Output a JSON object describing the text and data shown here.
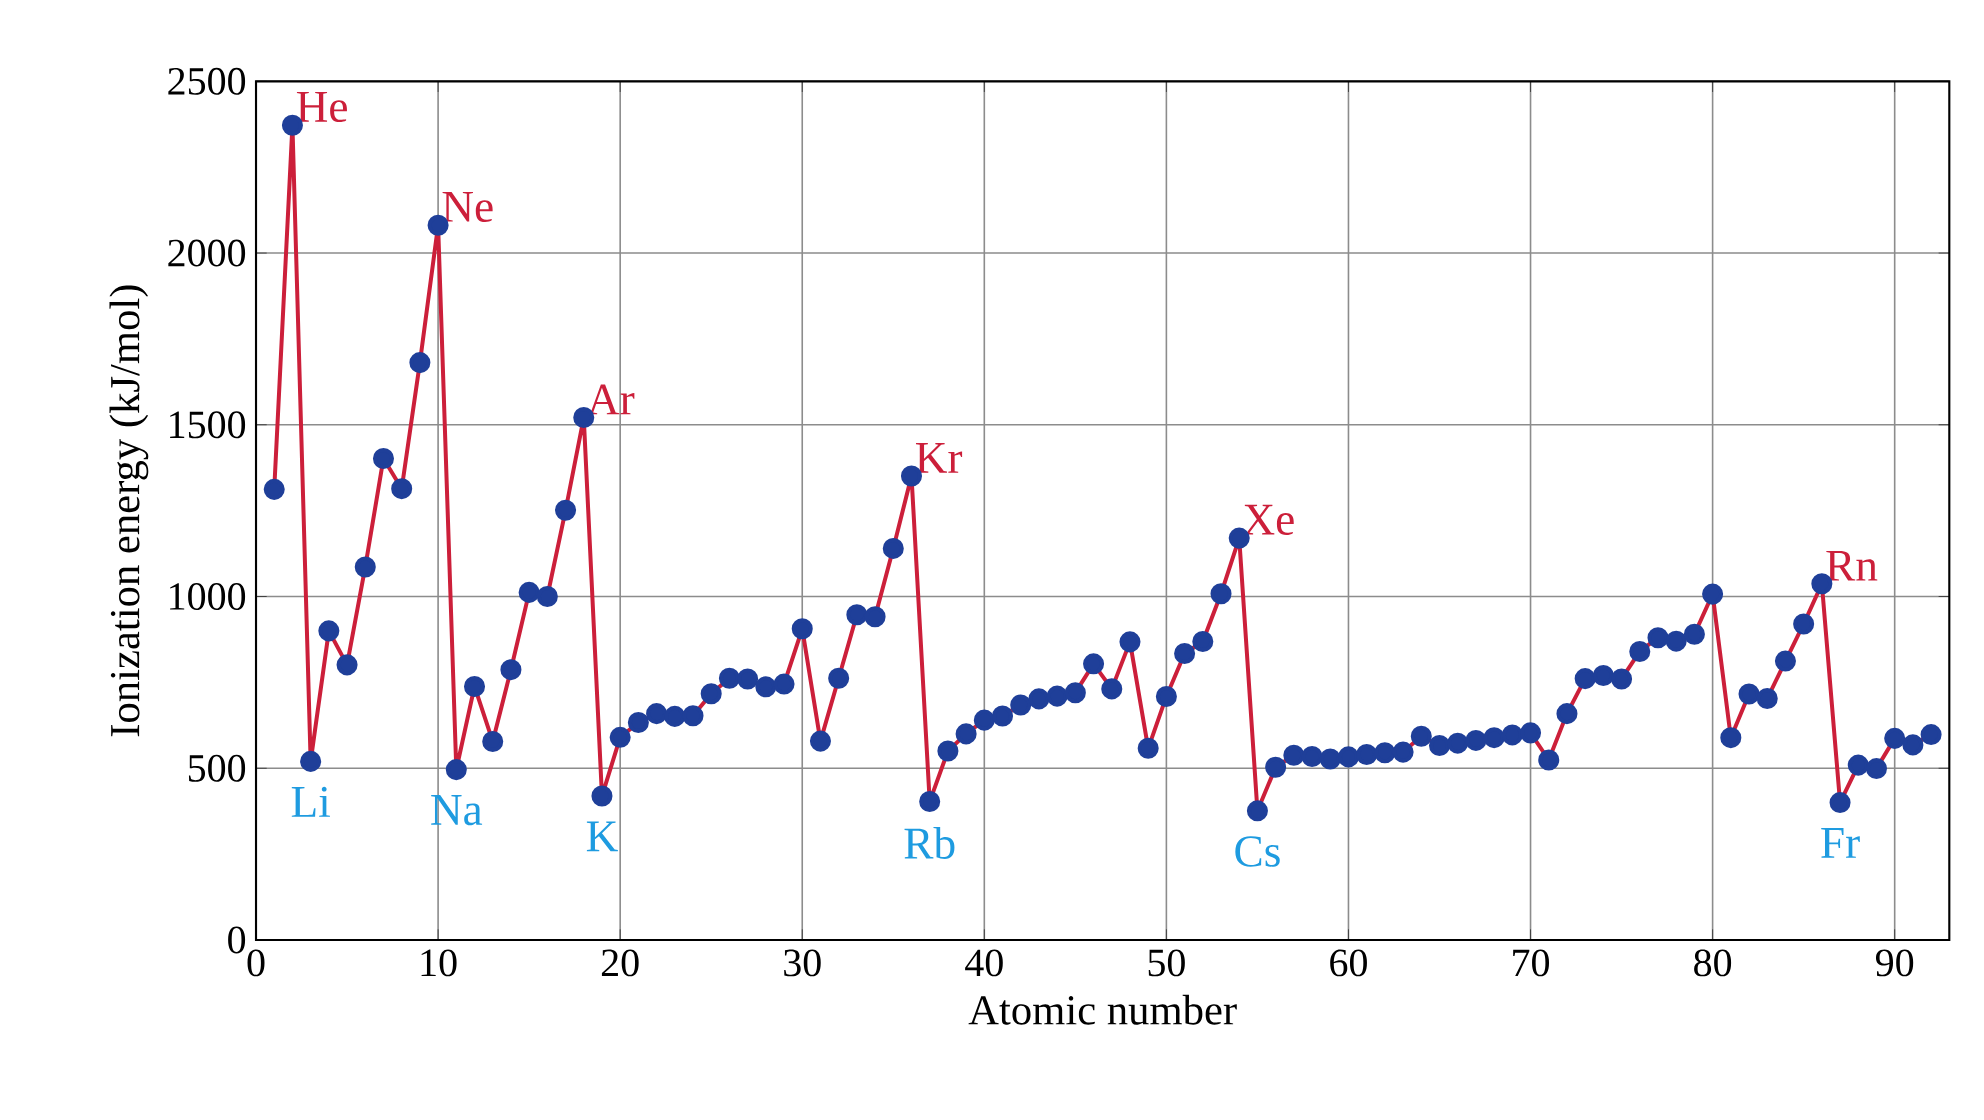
{
  "chart_data": {
    "type": "line",
    "xlabel": "Atomic number",
    "ylabel": "Ionization energy (kJ/mol)",
    "xlim": [
      0,
      93
    ],
    "ylim": [
      0,
      2500
    ],
    "xticks": [
      0,
      10,
      20,
      30,
      40,
      50,
      60,
      70,
      80,
      90
    ],
    "yticks": [
      0,
      500,
      1000,
      1500,
      2000,
      2500
    ],
    "grid": true,
    "marker": "circle",
    "line_style": "solid",
    "series": [
      {
        "color": "#cc1f3a",
        "x": [
          1,
          2,
          3,
          4,
          5,
          6,
          7,
          8,
          9,
          10,
          11,
          12,
          13,
          14,
          15,
          16,
          17,
          18,
          19,
          20,
          21,
          22,
          23,
          24,
          25,
          26,
          27,
          28,
          29,
          30,
          31,
          32,
          33,
          34,
          35,
          36,
          37,
          38,
          39,
          40,
          41,
          42,
          43,
          44,
          45,
          46,
          47,
          48,
          49,
          50,
          51,
          52,
          53,
          54,
          55,
          56,
          57,
          58,
          59,
          60,
          61,
          62,
          63,
          64,
          65,
          66,
          67,
          68,
          69,
          70,
          71,
          72,
          73,
          74,
          75,
          76,
          77,
          78,
          79,
          80,
          81,
          82,
          83,
          84,
          85,
          86,
          87,
          88,
          89,
          90,
          91,
          92
        ],
        "values": [
          1312,
          2372,
          520,
          900,
          801,
          1086,
          1402,
          1314,
          1681,
          2081,
          496,
          738,
          578,
          787,
          1012,
          1000,
          1251,
          1521,
          419,
          590,
          633,
          659,
          651,
          653,
          717,
          762,
          760,
          737,
          745,
          906,
          579,
          762,
          947,
          941,
          1140,
          1351,
          403,
          550,
          600,
          640,
          652,
          684,
          702,
          710,
          720,
          804,
          731,
          868,
          558,
          709,
          834,
          869,
          1008,
          1170,
          376,
          503,
          538,
          534,
          527,
          533,
          540,
          545,
          547,
          593,
          566,
          573,
          581,
          589,
          597,
          603,
          524,
          659,
          761,
          770,
          760,
          840,
          880,
          870,
          890,
          1007,
          589,
          716,
          703,
          812,
          920,
          1037,
          400,
          509,
          499,
          587,
          568,
          598
        ]
      }
    ],
    "annotations": [
      {
        "text": "He",
        "x": 2,
        "y": 2372
      },
      {
        "text": "Ne",
        "x": 10,
        "y": 2081
      },
      {
        "text": "Ar",
        "x": 18,
        "y": 1521
      },
      {
        "text": "Kr",
        "x": 36,
        "y": 1351
      },
      {
        "text": "Xe",
        "x": 54,
        "y": 1170
      },
      {
        "text": "Rn",
        "x": 86,
        "y": 1037
      },
      {
        "text": "Li",
        "x": 3,
        "y": 520
      },
      {
        "text": "Na",
        "x": 11,
        "y": 496
      },
      {
        "text": "K",
        "x": 19,
        "y": 419
      },
      {
        "text": "Rb",
        "x": 37,
        "y": 403
      },
      {
        "text": "Cs",
        "x": 55,
        "y": 376
      },
      {
        "text": "Fr",
        "x": 87,
        "y": 400
      }
    ]
  }
}
